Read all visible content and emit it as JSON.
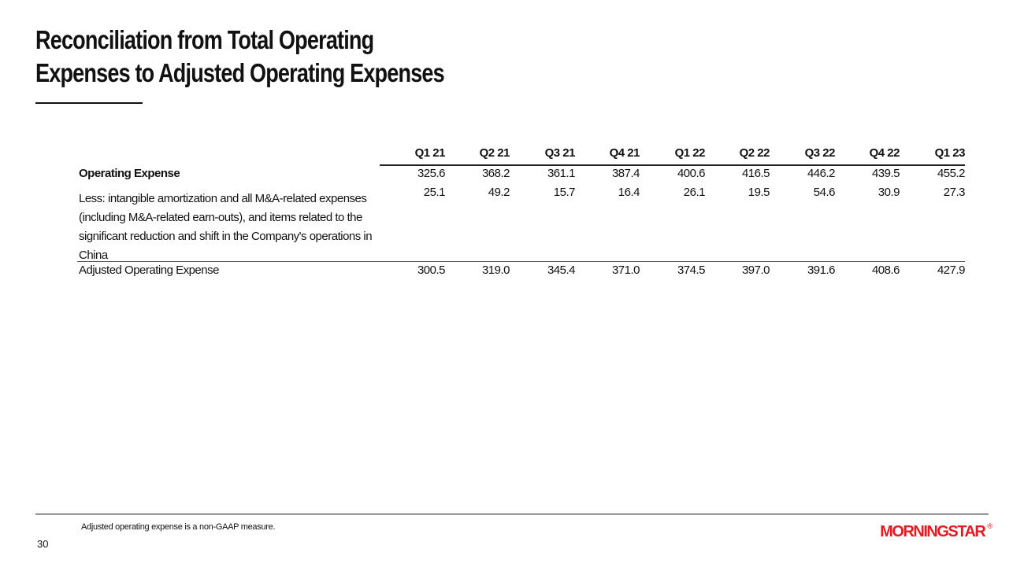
{
  "title": {
    "line1": "Reconciliation from Total Operating",
    "line2": "Expenses to Adjusted Operating Expenses"
  },
  "table": {
    "columns": [
      "Q1 21",
      "Q2 21",
      "Q3 21",
      "Q4 21",
      "Q1 22",
      "Q2 22",
      "Q3 22",
      "Q4 22",
      "Q1 23"
    ],
    "rows": [
      {
        "label": "Operating Expense",
        "bold": true,
        "values": [
          "325.6",
          "368.2",
          "361.1",
          "387.4",
          "400.6",
          "416.5",
          "446.2",
          "439.5",
          "455.2"
        ]
      },
      {
        "label": "Less: intangible amortization and all M&A-related expenses (including M&A-related earn-outs), and items related to the significant reduction and shift in the Company's operations in China",
        "bold": false,
        "values": [
          "25.1",
          "49.2",
          "15.7",
          "16.4",
          "26.1",
          "19.5",
          "54.6",
          "30.9",
          "27.3"
        ]
      },
      {
        "label": "Adjusted Operating Expense",
        "bold": false,
        "values": [
          "300.5",
          "319.0",
          "345.4",
          "371.0",
          "374.5",
          "397.0",
          "391.6",
          "408.6",
          "427.9"
        ]
      }
    ]
  },
  "footnote": "Adjusted operating expense is a non-GAAP measure.",
  "page_number": "30",
  "logo": {
    "text": "MORNINGSTAR",
    "registered": "®",
    "color": "#e31b23"
  }
}
